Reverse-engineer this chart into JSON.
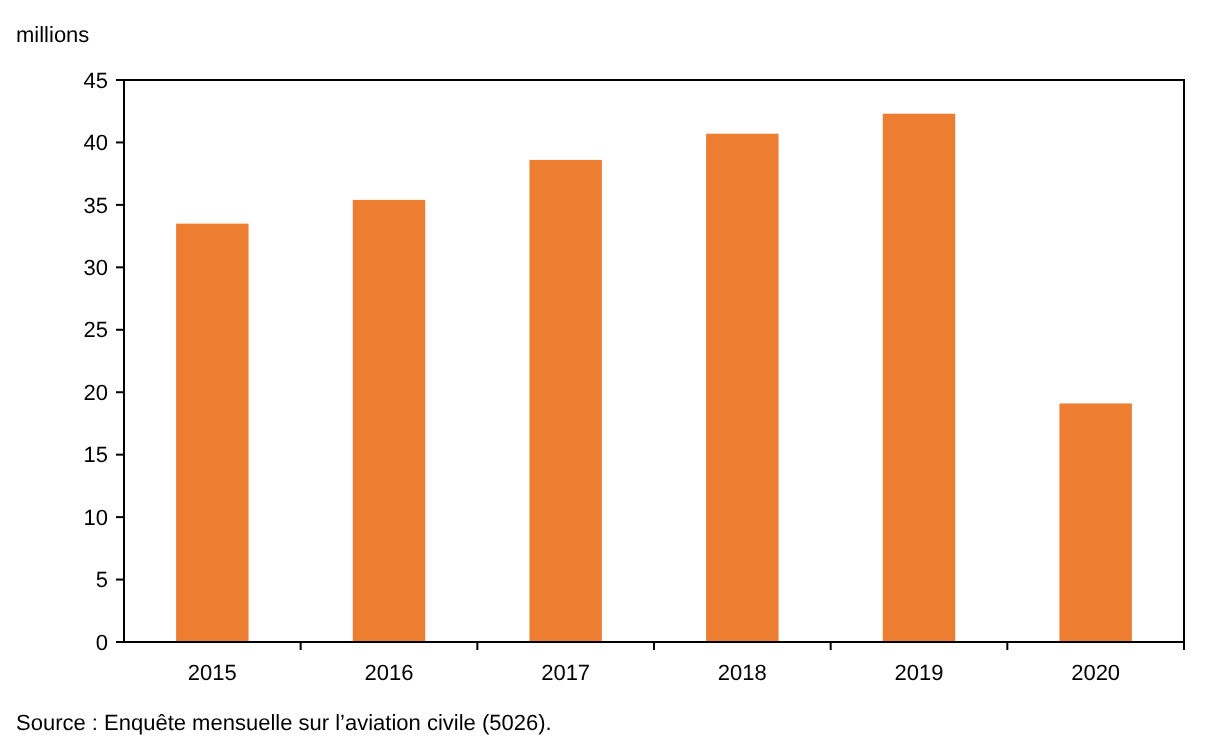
{
  "chart_data": {
    "type": "bar",
    "ylabel": "millions",
    "categories": [
      "2015",
      "2016",
      "2017",
      "2018",
      "2019",
      "2020"
    ],
    "values": [
      33.5,
      35.4,
      38.6,
      40.7,
      42.3,
      19.1
    ],
    "color": "#ed7d31",
    "ylim": [
      0,
      45
    ],
    "yticks": [
      0,
      5,
      10,
      15,
      20,
      25,
      30,
      35,
      40,
      45
    ],
    "grid": false,
    "annotations": [
      "Source : Enquête mensuelle sur l’aviation civile (5026)."
    ]
  }
}
